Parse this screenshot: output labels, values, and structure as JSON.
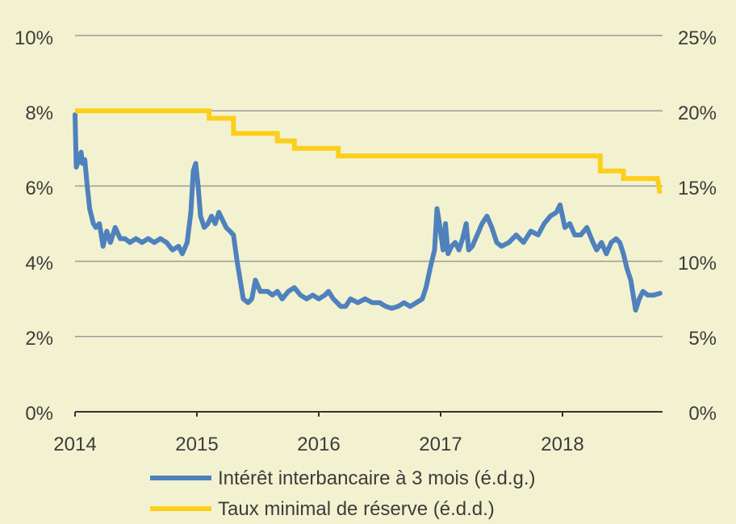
{
  "chart_data": {
    "type": "line",
    "grid": true,
    "xlim": [
      2014.0,
      2018.8
    ],
    "x_ticks": [
      "2014",
      "2015",
      "2016",
      "2017",
      "2018"
    ],
    "y_left": {
      "lim": [
        0,
        10
      ],
      "ticks": [
        0,
        2,
        4,
        6,
        8,
        10
      ],
      "tick_labels": [
        "0%",
        "2%",
        "4%",
        "6%",
        "8%",
        "10%"
      ]
    },
    "y_right": {
      "lim": [
        0,
        25
      ],
      "ticks": [
        0,
        5,
        10,
        15,
        20,
        25
      ],
      "tick_labels": [
        "0%",
        "5%",
        "10%",
        "15%",
        "20%",
        "25%"
      ]
    },
    "legend_position": "bottom",
    "series": [
      {
        "name": "Intérêt interbancaire à 3 mois (é.d.g.)",
        "axis": "left",
        "color": "#4f81bd",
        "points": [
          [
            2014.0,
            7.9
          ],
          [
            2014.01,
            6.5
          ],
          [
            2014.03,
            6.7
          ],
          [
            2014.05,
            6.9
          ],
          [
            2014.06,
            6.6
          ],
          [
            2014.08,
            6.7
          ],
          [
            2014.1,
            6.0
          ],
          [
            2014.12,
            5.4
          ],
          [
            2014.15,
            5.0
          ],
          [
            2014.17,
            4.9
          ],
          [
            2014.2,
            5.0
          ],
          [
            2014.23,
            4.4
          ],
          [
            2014.26,
            4.8
          ],
          [
            2014.29,
            4.5
          ],
          [
            2014.33,
            4.9
          ],
          [
            2014.37,
            4.6
          ],
          [
            2014.41,
            4.6
          ],
          [
            2014.45,
            4.5
          ],
          [
            2014.5,
            4.6
          ],
          [
            2014.55,
            4.5
          ],
          [
            2014.6,
            4.6
          ],
          [
            2014.65,
            4.5
          ],
          [
            2014.7,
            4.6
          ],
          [
            2014.75,
            4.5
          ],
          [
            2014.8,
            4.3
          ],
          [
            2014.85,
            4.4
          ],
          [
            2014.88,
            4.2
          ],
          [
            2014.92,
            4.5
          ],
          [
            2014.95,
            5.3
          ],
          [
            2014.97,
            6.4
          ],
          [
            2014.99,
            6.6
          ],
          [
            2015.01,
            6.0
          ],
          [
            2015.03,
            5.2
          ],
          [
            2015.06,
            4.9
          ],
          [
            2015.09,
            5.0
          ],
          [
            2015.12,
            5.2
          ],
          [
            2015.15,
            5.0
          ],
          [
            2015.18,
            5.3
          ],
          [
            2015.21,
            5.1
          ],
          [
            2015.24,
            4.9
          ],
          [
            2015.27,
            4.8
          ],
          [
            2015.3,
            4.7
          ],
          [
            2015.33,
            4.0
          ],
          [
            2015.36,
            3.4
          ],
          [
            2015.38,
            3.0
          ],
          [
            2015.42,
            2.9
          ],
          [
            2015.45,
            3.0
          ],
          [
            2015.48,
            3.5
          ],
          [
            2015.52,
            3.2
          ],
          [
            2015.58,
            3.2
          ],
          [
            2015.62,
            3.1
          ],
          [
            2015.66,
            3.2
          ],
          [
            2015.7,
            3.0
          ],
          [
            2015.75,
            3.2
          ],
          [
            2015.8,
            3.3
          ],
          [
            2015.85,
            3.1
          ],
          [
            2015.9,
            3.0
          ],
          [
            2015.95,
            3.1
          ],
          [
            2016.0,
            3.0
          ],
          [
            2016.05,
            3.1
          ],
          [
            2016.08,
            3.2
          ],
          [
            2016.12,
            3.0
          ],
          [
            2016.18,
            2.8
          ],
          [
            2016.22,
            2.8
          ],
          [
            2016.26,
            3.0
          ],
          [
            2016.32,
            2.9
          ],
          [
            2016.38,
            3.0
          ],
          [
            2016.44,
            2.9
          ],
          [
            2016.5,
            2.9
          ],
          [
            2016.55,
            2.8
          ],
          [
            2016.6,
            2.75
          ],
          [
            2016.65,
            2.8
          ],
          [
            2016.7,
            2.9
          ],
          [
            2016.75,
            2.8
          ],
          [
            2016.8,
            2.9
          ],
          [
            2016.85,
            3.0
          ],
          [
            2016.88,
            3.3
          ],
          [
            2016.92,
            3.9
          ],
          [
            2016.95,
            4.3
          ],
          [
            2016.97,
            5.4
          ],
          [
            2016.99,
            5.0
          ],
          [
            2017.02,
            4.3
          ],
          [
            2017.04,
            5.0
          ],
          [
            2017.06,
            4.2
          ],
          [
            2017.09,
            4.4
          ],
          [
            2017.12,
            4.5
          ],
          [
            2017.15,
            4.3
          ],
          [
            2017.18,
            4.6
          ],
          [
            2017.21,
            5.0
          ],
          [
            2017.23,
            4.3
          ],
          [
            2017.26,
            4.4
          ],
          [
            2017.3,
            4.7
          ],
          [
            2017.34,
            5.0
          ],
          [
            2017.38,
            5.2
          ],
          [
            2017.42,
            4.9
          ],
          [
            2017.46,
            4.5
          ],
          [
            2017.5,
            4.4
          ],
          [
            2017.56,
            4.5
          ],
          [
            2017.62,
            4.7
          ],
          [
            2017.68,
            4.5
          ],
          [
            2017.74,
            4.8
          ],
          [
            2017.8,
            4.7
          ],
          [
            2017.85,
            5.0
          ],
          [
            2017.9,
            5.2
          ],
          [
            2017.95,
            5.3
          ],
          [
            2017.98,
            5.5
          ],
          [
            2018.02,
            4.9
          ],
          [
            2018.06,
            5.0
          ],
          [
            2018.1,
            4.7
          ],
          [
            2018.15,
            4.7
          ],
          [
            2018.2,
            4.9
          ],
          [
            2018.25,
            4.5
          ],
          [
            2018.28,
            4.3
          ],
          [
            2018.32,
            4.5
          ],
          [
            2018.36,
            4.2
          ],
          [
            2018.4,
            4.5
          ],
          [
            2018.44,
            4.6
          ],
          [
            2018.47,
            4.5
          ],
          [
            2018.5,
            4.2
          ],
          [
            2018.53,
            3.8
          ],
          [
            2018.56,
            3.5
          ],
          [
            2018.58,
            3.1
          ],
          [
            2018.6,
            2.7
          ],
          [
            2018.63,
            3.0
          ],
          [
            2018.66,
            3.2
          ],
          [
            2018.7,
            3.1
          ],
          [
            2018.75,
            3.1
          ],
          [
            2018.8,
            3.15
          ]
        ]
      },
      {
        "name": "Taux minimal de réserve (é.d.d.)",
        "axis": "right",
        "color": "#fbcf1c",
        "points": [
          [
            2014.0,
            20.0
          ],
          [
            2015.1,
            20.0
          ],
          [
            2015.1,
            19.5
          ],
          [
            2015.3,
            19.5
          ],
          [
            2015.3,
            18.5
          ],
          [
            2015.66,
            18.5
          ],
          [
            2015.66,
            18.0
          ],
          [
            2015.8,
            18.0
          ],
          [
            2015.8,
            17.5
          ],
          [
            2016.16,
            17.5
          ],
          [
            2016.16,
            17.0
          ],
          [
            2018.31,
            17.0
          ],
          [
            2018.31,
            16.0
          ],
          [
            2018.5,
            16.0
          ],
          [
            2018.5,
            15.5
          ],
          [
            2018.78,
            15.5
          ],
          [
            2018.8,
            14.5
          ]
        ]
      }
    ]
  }
}
